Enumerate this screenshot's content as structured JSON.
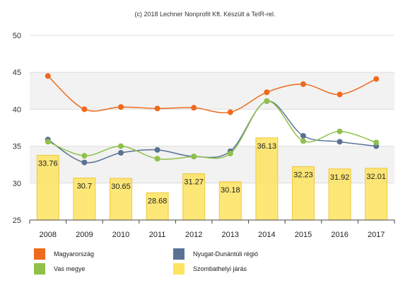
{
  "credit": "(c) 2018 Lechner Nonprofit Kft. Készült a TeIR-rel.",
  "chart_data": {
    "type": "bar",
    "categories": [
      "2008",
      "2009",
      "2010",
      "2011",
      "2012",
      "2013",
      "2014",
      "2015",
      "2016",
      "2017"
    ],
    "ylim": [
      25,
      50
    ],
    "yticks": [
      25,
      30,
      35,
      40,
      45,
      50
    ],
    "grid": true,
    "legend_position": "bottom",
    "bar_series": {
      "name": "Szombathelyi járás",
      "color": "#fde35f",
      "values": [
        33.76,
        30.7,
        30.65,
        28.68,
        31.27,
        30.18,
        36.13,
        32.23,
        31.92,
        32.01
      ],
      "labels": [
        "33.76",
        "30.7",
        "30.65",
        "28.68",
        "31.27",
        "30.18",
        "36.13",
        "32.23",
        "31.92",
        "32.01"
      ]
    },
    "line_series": [
      {
        "name": "Nyugat-Dunántúli régió",
        "color": "#5a7292",
        "values": [
          35.9,
          32.8,
          34.1,
          34.5,
          33.6,
          34.3,
          41.1,
          36.4,
          35.6,
          35.0
        ]
      },
      {
        "name": "Vas megye",
        "color": "#8fc04a",
        "values": [
          35.6,
          33.7,
          35.0,
          33.3,
          33.6,
          34.0,
          41.1,
          35.7,
          37.0,
          35.5
        ]
      },
      {
        "name": "Magyarország",
        "color": "#ee6a1c",
        "values": [
          44.5,
          40.0,
          40.3,
          40.1,
          40.2,
          39.6,
          42.3,
          43.4,
          42.0,
          44.1
        ]
      }
    ]
  },
  "legend": [
    {
      "label": "Magyarország",
      "color": "#ee6a1c"
    },
    {
      "label": "Nyugat-Dunántúli régió",
      "color": "#5a7292"
    },
    {
      "label": "Vas megye",
      "color": "#8fc04a"
    },
    {
      "label": "Szombathelyi járás",
      "color": "#fde35f"
    }
  ]
}
